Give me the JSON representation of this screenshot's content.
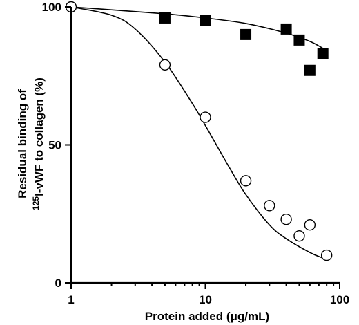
{
  "chart_data": {
    "type": "scatter",
    "xscale": "log",
    "xlim": [
      1,
      100
    ],
    "ylim": [
      0,
      100
    ],
    "xlabel_pre": "Protein added (",
    "xlabel_mu": "μ",
    "xlabel_post": "g/mL)",
    "ylabel_line1": "Residual binding of",
    "ylabel_sup": "125",
    "ylabel_line2": "I-vWF to collagen (%)",
    "x_ticks": [
      {
        "value": 1,
        "label": "1"
      },
      {
        "value": 10,
        "label": "10"
      },
      {
        "value": 100,
        "label": "100"
      }
    ],
    "y_ticks": [
      {
        "value": 0,
        "label": "0"
      },
      {
        "value": 50,
        "label": "50"
      },
      {
        "value": 100,
        "label": "100"
      }
    ],
    "series": [
      {
        "marker": "filled-square",
        "color": "#000000",
        "points": [
          [
            1,
            100
          ],
          [
            5,
            96
          ],
          [
            10,
            95
          ],
          [
            20,
            90
          ],
          [
            40,
            92
          ],
          [
            50,
            88
          ],
          [
            60,
            77
          ],
          [
            75,
            83
          ]
        ],
        "fit": [
          [
            1,
            100
          ],
          [
            5,
            97.5
          ],
          [
            10,
            96
          ],
          [
            20,
            94
          ],
          [
            40,
            90.5
          ],
          [
            60,
            87.5
          ],
          [
            75,
            85
          ]
        ]
      },
      {
        "marker": "open-circle",
        "color": "#000000",
        "points": [
          [
            1,
            100
          ],
          [
            5,
            79
          ],
          [
            10,
            60
          ],
          [
            20,
            37
          ],
          [
            30,
            28
          ],
          [
            40,
            23
          ],
          [
            50,
            17
          ],
          [
            60,
            21
          ],
          [
            80,
            10
          ]
        ],
        "fit": [
          [
            1,
            100
          ],
          [
            2,
            97
          ],
          [
            3,
            92
          ],
          [
            5,
            80
          ],
          [
            8,
            65
          ],
          [
            10,
            57
          ],
          [
            15,
            42
          ],
          [
            20,
            32
          ],
          [
            30,
            21
          ],
          [
            40,
            16
          ],
          [
            60,
            11
          ],
          [
            75,
            9
          ]
        ]
      }
    ]
  }
}
